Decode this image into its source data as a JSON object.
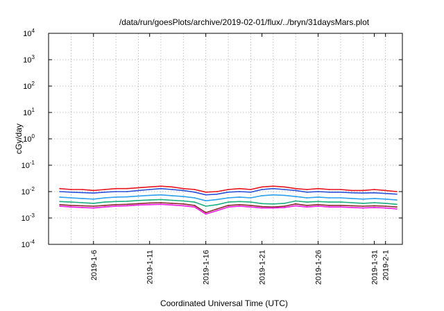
{
  "chart_data": {
    "type": "line",
    "title": "/data/run/goesPlots/archive/2019-02-01/flux/../bryn/31daysMars.plot",
    "xlabel": "Coordinated Universal Time (UTC)",
    "ylabel": "cGy/day",
    "yscale": "log",
    "ylim": [
      0.0001,
      10000
    ],
    "xlim": [
      "2019-01-02",
      "2019-02-02T12:00"
    ],
    "y_ticks": [
      {
        "base": "10",
        "exp": "-4",
        "value": 0.0001
      },
      {
        "base": "10",
        "exp": "-3",
        "value": 0.001
      },
      {
        "base": "10",
        "exp": "-2",
        "value": 0.01
      },
      {
        "base": "10",
        "exp": "-1",
        "value": 0.1
      },
      {
        "base": "10",
        "exp": "0",
        "value": 1
      },
      {
        "base": "10",
        "exp": "1",
        "value": 10
      },
      {
        "base": "10",
        "exp": "2",
        "value": 100
      },
      {
        "base": "10",
        "exp": "3",
        "value": 1000
      },
      {
        "base": "10",
        "exp": "4",
        "value": 10000
      }
    ],
    "x_ticks": [
      {
        "label": "2019-1-6",
        "date": "2019-01-06"
      },
      {
        "label": "2019-1-11",
        "date": "2019-01-11"
      },
      {
        "label": "2019-1-16",
        "date": "2019-01-16"
      },
      {
        "label": "2019-1-21",
        "date": "2019-01-21"
      },
      {
        "label": "2019-1-26",
        "date": "2019-01-26"
      },
      {
        "label": "2019-1-31",
        "date": "2019-01-31"
      },
      {
        "label": "2019-2-1",
        "date": "2019-02-01"
      }
    ],
    "x_grid_dates": [
      "2019-01-04",
      "2019-01-06",
      "2019-01-08",
      "2019-01-10",
      "2019-01-12",
      "2019-01-14",
      "2019-01-16",
      "2019-01-18",
      "2019-01-20",
      "2019-01-22",
      "2019-01-24",
      "2019-01-26",
      "2019-01-28",
      "2019-01-30",
      "2019-02-01"
    ],
    "grid": true,
    "x": [
      "2019-01-03",
      "2019-01-04",
      "2019-01-05",
      "2019-01-06",
      "2019-01-07",
      "2019-01-08",
      "2019-01-09",
      "2019-01-10",
      "2019-01-11",
      "2019-01-12",
      "2019-01-13",
      "2019-01-14",
      "2019-01-15",
      "2019-01-16",
      "2019-01-17",
      "2019-01-18",
      "2019-01-19",
      "2019-01-20",
      "2019-01-21",
      "2019-01-22",
      "2019-01-23",
      "2019-01-24",
      "2019-01-25",
      "2019-01-26",
      "2019-01-27",
      "2019-01-28",
      "2019-01-29",
      "2019-01-30",
      "2019-01-31",
      "2019-02-01",
      "2019-02-02"
    ],
    "series": [
      {
        "color": "#e8141e",
        "values": [
          0.013,
          0.012,
          0.012,
          0.011,
          0.012,
          0.013,
          0.013,
          0.014,
          0.015,
          0.016,
          0.015,
          0.013,
          0.012,
          0.0095,
          0.01,
          0.012,
          0.013,
          0.012,
          0.015,
          0.016,
          0.015,
          0.013,
          0.012,
          0.013,
          0.012,
          0.012,
          0.011,
          0.011,
          0.012,
          0.011,
          0.01
        ]
      },
      {
        "color": "#2a52d8",
        "values": [
          0.01,
          0.0095,
          0.0092,
          0.0088,
          0.0095,
          0.01,
          0.01,
          0.011,
          0.012,
          0.013,
          0.012,
          0.011,
          0.0095,
          0.0075,
          0.008,
          0.0095,
          0.01,
          0.0095,
          0.012,
          0.013,
          0.012,
          0.011,
          0.0095,
          0.01,
          0.0095,
          0.0095,
          0.009,
          0.0088,
          0.009,
          0.0085,
          0.008
        ]
      },
      {
        "color": "#2aa0ee",
        "values": [
          0.0062,
          0.0058,
          0.0055,
          0.0052,
          0.0058,
          0.0062,
          0.0063,
          0.0068,
          0.0072,
          0.0075,
          0.007,
          0.0065,
          0.0058,
          0.0045,
          0.005,
          0.0058,
          0.0062,
          0.0058,
          0.007,
          0.0075,
          0.0072,
          0.0065,
          0.0058,
          0.0062,
          0.0058,
          0.0058,
          0.0055,
          0.0052,
          0.0055,
          0.0052,
          0.0048
        ]
      },
      {
        "color": "#18b080",
        "values": [
          0.0042,
          0.004,
          0.0038,
          0.0036,
          0.004,
          0.0042,
          0.0043,
          0.0046,
          0.0048,
          0.005,
          0.0047,
          0.0044,
          0.004,
          0.0028,
          0.0032,
          0.004,
          0.0042,
          0.004,
          0.0035,
          0.0034,
          0.0036,
          0.0044,
          0.004,
          0.0042,
          0.004,
          0.004,
          0.0038,
          0.0036,
          0.0038,
          0.0036,
          0.0033
        ]
      },
      {
        "color": "#8a2a2a",
        "values": [
          0.0032,
          0.003,
          0.0029,
          0.0028,
          0.003,
          0.0032,
          0.0033,
          0.0035,
          0.0037,
          0.0038,
          0.0036,
          0.0034,
          0.003,
          0.0016,
          0.0022,
          0.003,
          0.0032,
          0.003,
          0.0027,
          0.0026,
          0.0028,
          0.0034,
          0.003,
          0.0032,
          0.003,
          0.003,
          0.0029,
          0.0028,
          0.0029,
          0.0028,
          0.0026
        ]
      },
      {
        "color": "#ee16e4",
        "values": [
          0.0028,
          0.0026,
          0.0025,
          0.0024,
          0.0026,
          0.0028,
          0.0029,
          0.0031,
          0.0032,
          0.0033,
          0.0031,
          0.0029,
          0.0026,
          0.0014,
          0.0019,
          0.0026,
          0.0028,
          0.0026,
          0.0024,
          0.0024,
          0.0025,
          0.0029,
          0.0026,
          0.0028,
          0.0026,
          0.0026,
          0.0025,
          0.0024,
          0.0025,
          0.0024,
          0.0022
        ]
      }
    ]
  }
}
